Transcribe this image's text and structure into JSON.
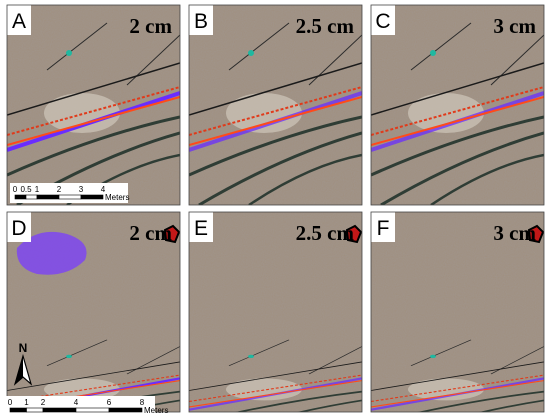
{
  "panels": [
    {
      "letter": "A",
      "label": "2 cm"
    },
    {
      "letter": "B",
      "label": "2.5 cm"
    },
    {
      "letter": "C",
      "label": "3 cm"
    },
    {
      "letter": "D",
      "label": "2 cm"
    },
    {
      "letter": "E",
      "label": "2.5 cm"
    },
    {
      "letter": "F",
      "label": "3 cm"
    }
  ],
  "scale_bars": [
    {
      "ticks": [
        0,
        0.5,
        1,
        2,
        3,
        4
      ],
      "unit": "Meters"
    },
    {
      "ticks": [
        0,
        1,
        2,
        4,
        6,
        8
      ],
      "unit": "Meters"
    }
  ],
  "north": "N"
}
